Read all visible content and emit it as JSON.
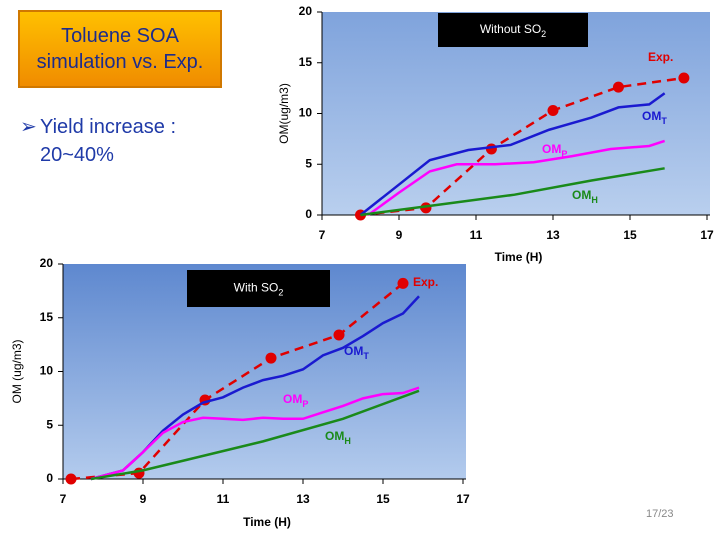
{
  "slide": {
    "title": "Toluene SOA simulation vs. Exp.",
    "bullet": "Yield increase : 20~40%",
    "page_number": "17/23"
  },
  "chart_data": [
    {
      "type": "line",
      "annotation": "Without SO2",
      "x_label": "Time (H)",
      "y_label": "OM(ug/m3)",
      "xlim": [
        7,
        17
      ],
      "xticks": [
        7,
        9,
        11,
        13,
        15,
        17
      ],
      "ylim": [
        0,
        20
      ],
      "yticks": [
        0,
        5,
        10,
        15,
        20
      ],
      "series": [
        {
          "name": "Exp.",
          "color": "#e00000",
          "line_style": "dashed",
          "marker": true,
          "x": [
            8.0,
            9.7,
            11.4,
            13.0,
            14.7,
            16.4
          ],
          "values": [
            0,
            0.7,
            6.5,
            10.3,
            12.6,
            13.5
          ]
        },
        {
          "name": "OMT",
          "color": "#1a1ad0",
          "line_style": "solid",
          "marker": false,
          "x": [
            8.0,
            8.5,
            9.0,
            9.8,
            10.8,
            11.9,
            12.9,
            14.0,
            14.7,
            15.5,
            15.9
          ],
          "values": [
            0,
            1.5,
            3.0,
            5.4,
            6.4,
            6.9,
            8.4,
            9.6,
            10.6,
            10.9,
            12.0
          ]
        },
        {
          "name": "OMP",
          "color": "#ff00ff",
          "line_style": "solid",
          "marker": false,
          "x": [
            8.2,
            9.0,
            9.8,
            10.5,
            11.5,
            12.5,
            13.5,
            14.5,
            15.5,
            15.9
          ],
          "values": [
            0,
            2.2,
            4.3,
            5.0,
            5.0,
            5.2,
            5.8,
            6.5,
            6.8,
            7.3
          ]
        },
        {
          "name": "OMH",
          "color": "#1a8a1a",
          "line_style": "solid",
          "marker": false,
          "x": [
            8.0,
            10.0,
            12.0,
            14.0,
            15.9
          ],
          "values": [
            0,
            1.0,
            2.0,
            3.4,
            4.6
          ]
        }
      ]
    },
    {
      "type": "line",
      "annotation": "With SO2",
      "x_label": "Time (H)",
      "y_label": "OM (ug/m3)",
      "xlim": [
        7,
        17
      ],
      "xticks": [
        7,
        9,
        11,
        13,
        15,
        17
      ],
      "ylim": [
        0,
        20
      ],
      "yticks": [
        0,
        5,
        10,
        15,
        20
      ],
      "series": [
        {
          "name": "Exp.",
          "color": "#e00000",
          "line_style": "dashed",
          "marker": true,
          "x": [
            7.2,
            8.9,
            10.55,
            12.2,
            13.9,
            15.5
          ],
          "values": [
            0,
            0.55,
            7.35,
            11.25,
            13.4,
            18.2
          ]
        },
        {
          "name": "OMT",
          "color": "#1a1ad0",
          "line_style": "solid",
          "marker": false,
          "x": [
            7.7,
            8.5,
            9.0,
            9.5,
            10.0,
            10.5,
            11.0,
            11.5,
            12.0,
            12.5,
            13.0,
            13.5,
            14.0,
            14.5,
            15.0,
            15.5,
            15.9
          ],
          "values": [
            0,
            0.8,
            2.5,
            4.5,
            6.0,
            7.1,
            7.6,
            8.5,
            9.2,
            9.6,
            10.2,
            11.5,
            12.2,
            13.3,
            14.5,
            15.4,
            17.0
          ]
        },
        {
          "name": "OMP",
          "color": "#ff00ff",
          "line_style": "solid",
          "marker": false,
          "x": [
            7.7,
            8.5,
            9.0,
            9.5,
            10.0,
            10.5,
            11.0,
            11.5,
            12.0,
            12.5,
            13.0,
            13.5,
            14.0,
            14.5,
            15.0,
            15.5,
            15.9
          ],
          "values": [
            0,
            0.8,
            2.5,
            4.3,
            5.3,
            5.7,
            5.6,
            5.5,
            5.7,
            5.6,
            5.6,
            6.2,
            6.8,
            7.5,
            7.9,
            8.0,
            8.5
          ]
        },
        {
          "name": "OMH",
          "color": "#1a8a1a",
          "line_style": "solid",
          "marker": false,
          "x": [
            7.7,
            9.0,
            10.0,
            12.0,
            14.0,
            15.9
          ],
          "values": [
            0,
            0.8,
            1.7,
            3.5,
            5.6,
            8.2
          ]
        }
      ]
    }
  ]
}
